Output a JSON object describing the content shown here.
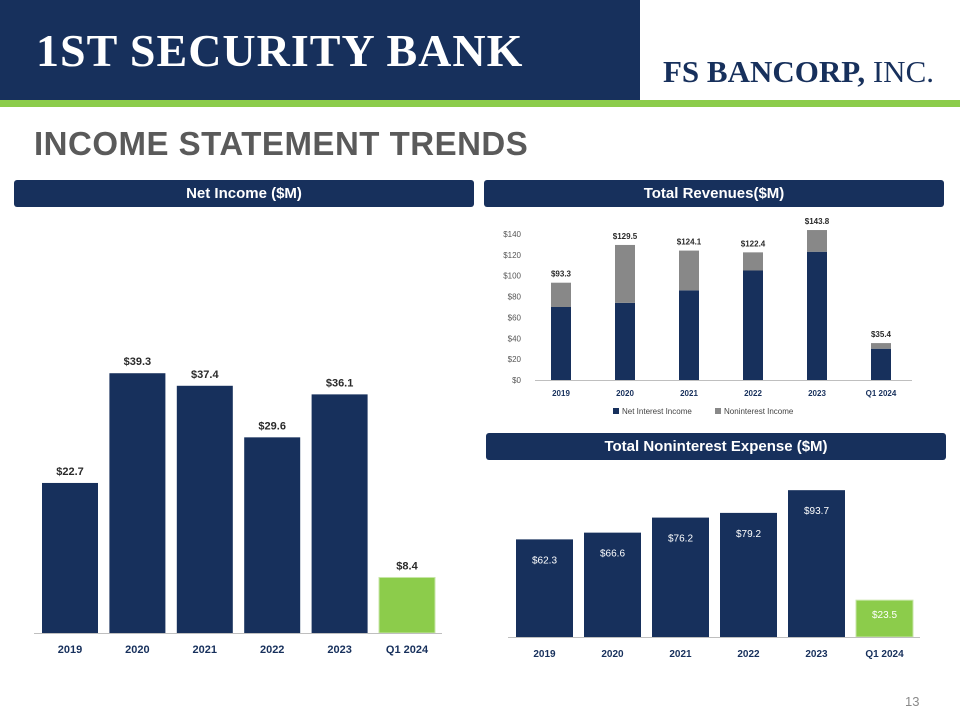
{
  "header": {
    "bank_name": "1ST SECURITY BANK",
    "corp_name_bold": "FS BANCORP,",
    "corp_name_rest": " INC.",
    "title": "INCOME STATEMENT TRENDS"
  },
  "colors": {
    "navy": "#17305c",
    "green": "#8ccc4b",
    "gray": "#888888"
  },
  "chart_data": [
    {
      "type": "bar",
      "title": "Net Income ($M)",
      "categories": [
        "2019",
        "2020",
        "2021",
        "2022",
        "2023",
        "Q1 2024"
      ],
      "values": [
        22.7,
        39.3,
        37.4,
        29.6,
        36.1,
        8.4
      ],
      "labels": [
        "$22.7",
        "$39.3",
        "$37.4",
        "$29.6",
        "$36.1",
        "$8.4"
      ],
      "highlight_last": true,
      "label_position": "above"
    },
    {
      "type": "bar",
      "stacked": true,
      "title": "Total Revenues($M)",
      "categories": [
        "2019",
        "2020",
        "2021",
        "2022",
        "2023",
        "Q1 2024"
      ],
      "series": [
        {
          "name": "Net Interest Income",
          "values": [
            70,
            74,
            86,
            105,
            123,
            30
          ]
        },
        {
          "name": "Noninterest Income",
          "values": [
            23.3,
            55.5,
            38.1,
            17.4,
            20.8,
            5.4
          ]
        }
      ],
      "totals": [
        "$93.3",
        "$129.5",
        "$124.1",
        "$122.4",
        "$143.8",
        "$35.4"
      ],
      "ylim": [
        0,
        140
      ],
      "yticks": [
        "$0",
        "$20",
        "$40",
        "$60",
        "$80",
        "$100",
        "$120",
        "$140"
      ],
      "legend": "bottom",
      "grid": false
    },
    {
      "type": "bar",
      "title": "Total Noninterest Expense ($M)",
      "categories": [
        "2019",
        "2020",
        "2021",
        "2022",
        "2023",
        "Q1 2024"
      ],
      "values": [
        62.3,
        66.6,
        76.2,
        79.2,
        93.7,
        23.5
      ],
      "labels": [
        "$62.3",
        "$66.6",
        "$76.2",
        "$79.2",
        "$93.7",
        "$23.5"
      ],
      "highlight_last": true,
      "label_position": "inside"
    }
  ],
  "footer": {
    "page_number": "13"
  }
}
